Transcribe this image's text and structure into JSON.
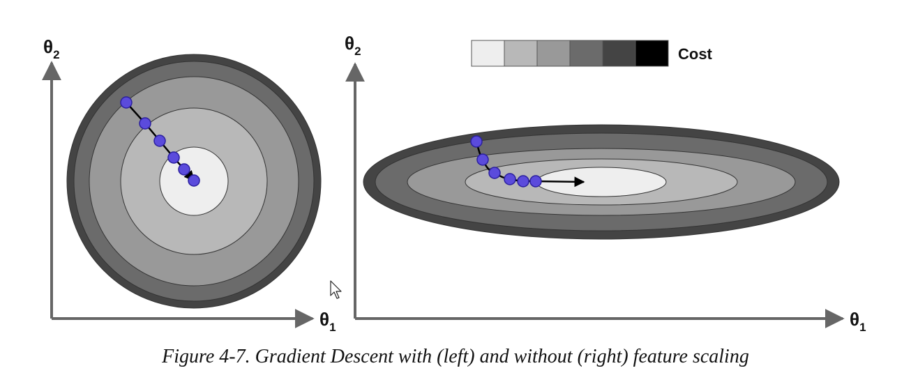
{
  "caption": "Figure 4-7. Gradient Descent with (left) and without (right) feature scaling",
  "legend": {
    "label": "Cost",
    "swatches": [
      "#eeeeee",
      "#b8b8b8",
      "#999999",
      "#6b6b6b",
      "#444444",
      "#000000"
    ]
  },
  "axes": {
    "x_symbol": "θ",
    "x_subscript": "1",
    "y_symbol": "θ",
    "y_subscript": "2"
  },
  "colors": {
    "axis": "#666666",
    "contour_fills": [
      "#444444",
      "#6b6b6b",
      "#999999",
      "#b8b8b8",
      "#eeeeee"
    ],
    "point_fill": "#5b4bdc",
    "point_stroke": "#2a1f9e",
    "path": "#000000"
  },
  "icons": {
    "cursor": "mouse-pointer-icon"
  },
  "panels": [
    {
      "name": "with-feature-scaling",
      "steps": 6
    },
    {
      "name": "without-feature-scaling",
      "steps": 6
    }
  ]
}
